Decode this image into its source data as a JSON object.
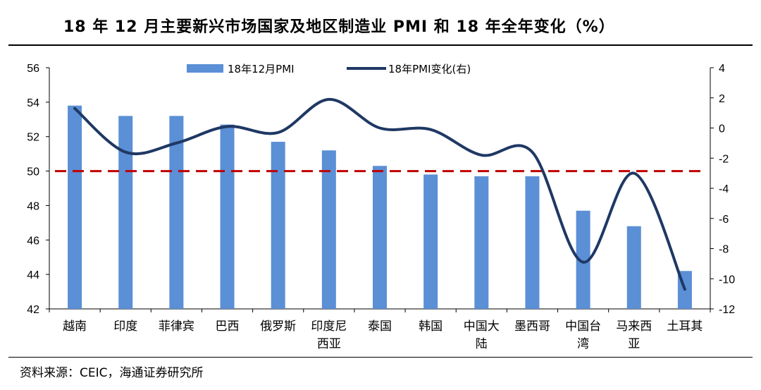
{
  "title": "18 年 12 月主要新兴市场国家及地区制造业 PMI 和 18 年全年变化（%）",
  "source": "资料来源：CEIC，海通证券研究所",
  "colors": {
    "bar": "#5B8FD6",
    "line": "#1F3864",
    "reference": "#C00000"
  },
  "chart_data": {
    "type": "bar",
    "categories": [
      "越南",
      "印度",
      "菲律宾",
      "巴西",
      "俄罗斯",
      "印度尼西亚",
      "泰国",
      "韩国",
      "中国大陆",
      "墨西哥",
      "中国台湾",
      "马来西亚",
      "土耳其"
    ],
    "category_labels": [
      [
        "越南"
      ],
      [
        "印度"
      ],
      [
        "菲律宾"
      ],
      [
        "巴西"
      ],
      [
        "俄罗斯"
      ],
      [
        "印度尼",
        "西亚"
      ],
      [
        "泰国"
      ],
      [
        "韩国"
      ],
      [
        "中国大",
        "陆"
      ],
      [
        "墨西哥"
      ],
      [
        "中国台",
        "湾"
      ],
      [
        "马来西",
        "亚"
      ],
      [
        "土耳其"
      ]
    ],
    "series": [
      {
        "name": "18年12月PMI",
        "type": "bar",
        "axis": "left",
        "values": [
          53.8,
          53.2,
          53.2,
          52.7,
          51.7,
          51.2,
          50.3,
          49.8,
          49.7,
          49.7,
          47.7,
          46.8,
          44.2
        ]
      },
      {
        "name": "18年PMI变化(右)",
        "type": "line",
        "axis": "right",
        "values": [
          1.3,
          -1.6,
          -1.0,
          0.1,
          -0.3,
          1.9,
          0.0,
          -0.1,
          -1.8,
          -1.6,
          -8.9,
          -3.0,
          -10.7
        ]
      }
    ],
    "reference_line": {
      "axis": "left",
      "value": 50,
      "style": "dashed"
    },
    "y_left": {
      "range": [
        42,
        56
      ],
      "ticks": [
        42,
        44,
        46,
        48,
        50,
        52,
        54,
        56
      ]
    },
    "y_right": {
      "range": [
        -12,
        4
      ],
      "ticks": [
        -12,
        -10,
        -8,
        -6,
        -4,
        -2,
        0,
        2,
        4
      ]
    },
    "legend_placement": "top-center",
    "grid": false
  }
}
